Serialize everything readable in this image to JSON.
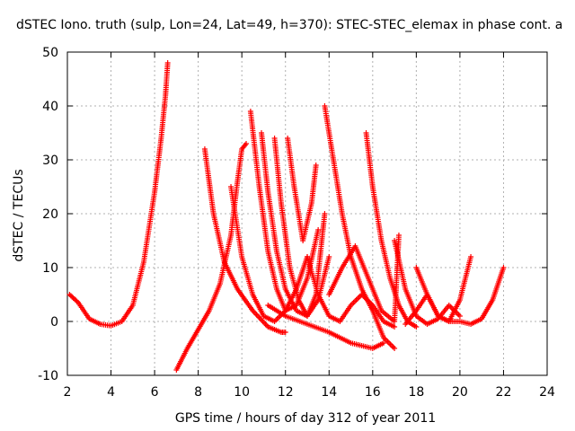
{
  "chart_data": {
    "type": "scatter",
    "title": "dSTEC Iono. truth (sulp, Lon=24, Lat=49, h=370): STEC-STEC_elemax in phase cont. a",
    "xlabel": "GPS time / hours of day 312 of year 2011",
    "ylabel": "dSTEC  / TECUs",
    "xlim": [
      2,
      24
    ],
    "ylim": [
      -10,
      50
    ],
    "xticks": [
      2,
      4,
      6,
      8,
      10,
      12,
      14,
      16,
      18,
      20,
      22,
      24
    ],
    "yticks": [
      -10,
      0,
      10,
      20,
      30,
      40,
      50
    ],
    "grid": true,
    "marker": "+",
    "color": "#ff0000",
    "series": [
      {
        "x": [
          2.1,
          2.5,
          3.0,
          3.5,
          4.0,
          4.5,
          5.0,
          5.5,
          6.0,
          6.3,
          6.5,
          6.6
        ],
        "y": [
          5,
          3.5,
          0.5,
          -0.5,
          -0.8,
          0,
          3,
          11,
          24,
          34,
          42,
          48
        ]
      },
      {
        "x": [
          7.0,
          7.5,
          8.0,
          8.5,
          9.0,
          9.5,
          9.8,
          10.0,
          10.2
        ],
        "y": [
          -9,
          -5,
          -1.5,
          2,
          7,
          16,
          26,
          32,
          33
        ]
      },
      {
        "x": [
          8.3,
          8.7,
          9.2,
          9.8,
          10.5,
          11.2,
          11.8,
          12.0
        ],
        "y": [
          32,
          20,
          11,
          6,
          2,
          -1,
          -2,
          -2
        ]
      },
      {
        "x": [
          9.5,
          10.0,
          10.5,
          11.0,
          11.5,
          12.0,
          12.5,
          13.0
        ],
        "y": [
          25,
          12,
          5,
          1,
          0,
          2,
          6,
          12
        ]
      },
      {
        "x": [
          10.4,
          10.8,
          11.2,
          11.6,
          12.0,
          12.5,
          13.0,
          13.5
        ],
        "y": [
          39,
          25,
          13,
          6,
          2,
          3,
          8,
          17
        ]
      },
      {
        "x": [
          10.9,
          11.2,
          11.6,
          12.0,
          12.5,
          13.0,
          13.5,
          14.0
        ],
        "y": [
          35,
          24,
          13,
          6,
          2,
          1,
          4,
          12
        ]
      },
      {
        "x": [
          11.5,
          11.8,
          12.2,
          12.6,
          13.0,
          13.4,
          13.8
        ],
        "y": [
          34,
          22,
          10,
          4,
          1,
          5,
          20
        ]
      },
      {
        "x": [
          12.1,
          12.4,
          12.8,
          13.2,
          13.4
        ],
        "y": [
          34,
          25,
          15,
          22,
          29
        ]
      },
      {
        "x": [
          11.2,
          12.0,
          13.0,
          14.0,
          15.0,
          16.0,
          16.5
        ],
        "y": [
          3,
          1,
          -0.5,
          -2,
          -4,
          -5,
          -4
        ]
      },
      {
        "x": [
          13.8,
          14.2,
          14.6,
          15.0,
          15.5,
          16.0,
          16.5,
          17.0
        ],
        "y": [
          40,
          30,
          20,
          12,
          6,
          2,
          -3,
          -5
        ]
      },
      {
        "x": [
          13.0,
          13.5,
          14.0,
          14.5,
          15.0,
          15.5,
          16.0,
          16.5,
          17.0
        ],
        "y": [
          12,
          5,
          1,
          0,
          3,
          5,
          3,
          0,
          -1
        ]
      },
      {
        "x": [
          15.7,
          16.0,
          16.4,
          16.8,
          17.2,
          17.6,
          18.0
        ],
        "y": [
          35,
          25,
          15,
          8,
          3,
          0,
          -1
        ]
      },
      {
        "x": [
          14.0,
          14.6,
          15.2,
          15.8,
          16.4,
          17.0,
          17.2
        ],
        "y": [
          5,
          10,
          14,
          8,
          2,
          0,
          16
        ]
      },
      {
        "x": [
          17.0,
          17.5,
          18.0,
          18.5,
          19.0,
          19.5,
          20.0
        ],
        "y": [
          15,
          6,
          1,
          -0.5,
          0.5,
          3,
          1
        ]
      },
      {
        "x": [
          17.5,
          18.0,
          18.5,
          19.0,
          19.5,
          20.0,
          20.5
        ],
        "y": [
          -0.5,
          2,
          5,
          1,
          0,
          4,
          12
        ]
      },
      {
        "x": [
          18.0,
          18.5,
          19.0,
          19.5,
          20.0,
          20.5,
          21.0,
          21.5,
          22.0
        ],
        "y": [
          10,
          5,
          1,
          0,
          0,
          -0.5,
          0.5,
          4,
          10
        ]
      }
    ]
  }
}
